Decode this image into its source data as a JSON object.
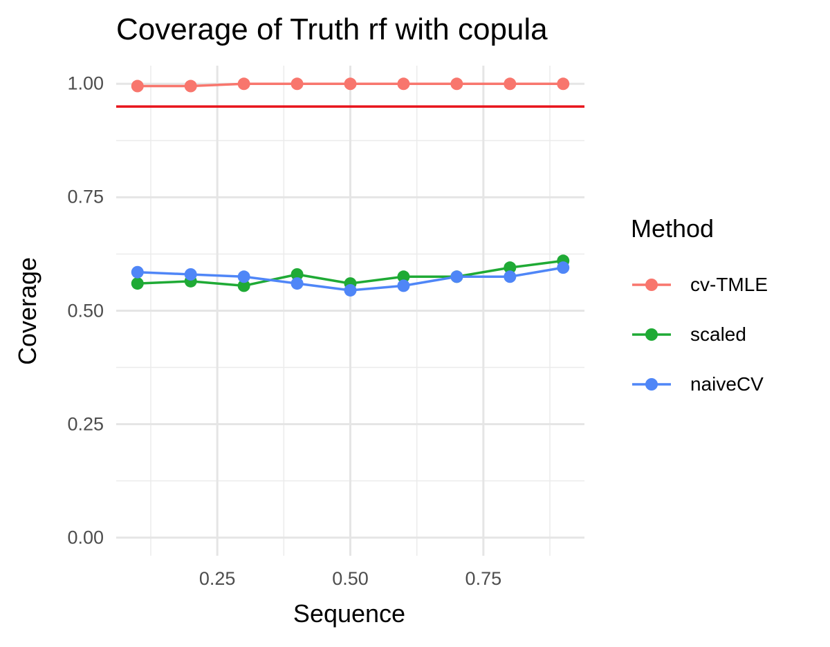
{
  "chart_data": {
    "type": "line",
    "title": "Coverage of Truth rf with copula",
    "xlabel": "Sequence",
    "ylabel": "Coverage",
    "xlim": [
      0.06,
      0.94
    ],
    "ylim": [
      -0.04,
      1.04
    ],
    "x_ticks": [
      "0.25",
      "0.50",
      "0.75"
    ],
    "x_tick_values": [
      0.25,
      0.5,
      0.75
    ],
    "y_ticks": [
      "0.00",
      "0.25",
      "0.50",
      "0.75",
      "1.00"
    ],
    "y_tick_values": [
      0,
      0.25,
      0.5,
      0.75,
      1.0
    ],
    "grid": true,
    "legend_title": "Method",
    "legend_position": "right",
    "x": [
      0.1,
      0.2,
      0.3,
      0.4,
      0.5,
      0.6,
      0.7,
      0.8,
      0.9
    ],
    "series": [
      {
        "name": "cv-TMLE",
        "color": "#F8766D",
        "values": [
          0.995,
          0.995,
          1.0,
          1.0,
          1.0,
          1.0,
          1.0,
          1.0,
          1.0
        ]
      },
      {
        "name": "scaled",
        "color": "#1FAA35",
        "values": [
          0.56,
          0.565,
          0.555,
          0.58,
          0.56,
          0.575,
          0.575,
          0.595,
          0.61
        ]
      },
      {
        "name": "naiveCV",
        "color": "#4F86F7",
        "values": [
          0.585,
          0.58,
          0.575,
          0.56,
          0.545,
          0.555,
          0.575,
          0.575,
          0.595
        ]
      }
    ],
    "reference_line": {
      "y": 0.95,
      "color": "#E8141C"
    }
  }
}
